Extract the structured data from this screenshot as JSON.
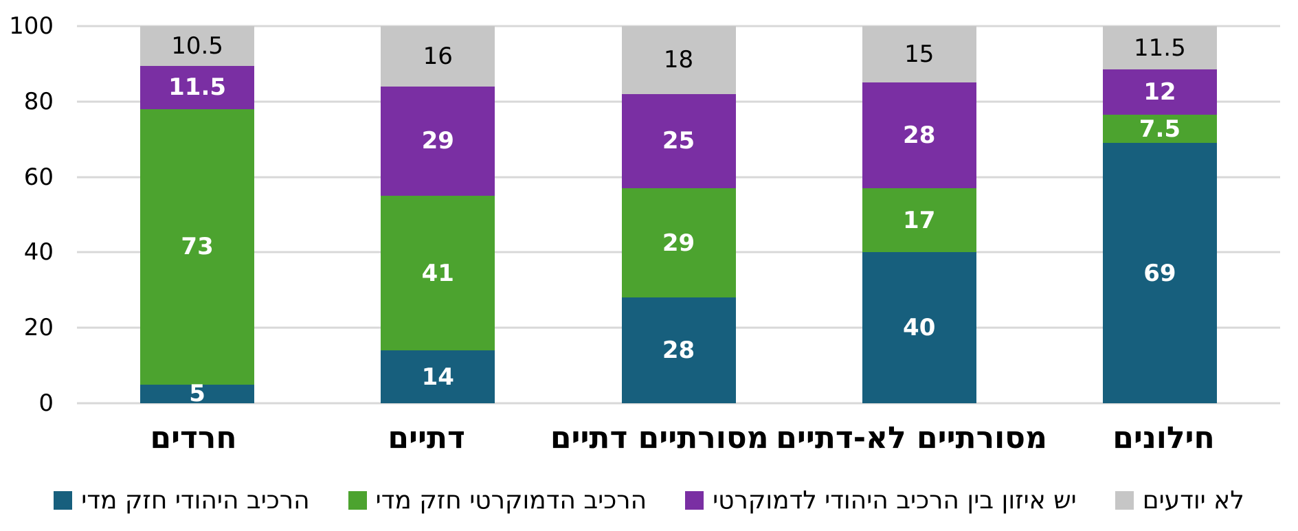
{
  "chart_data": {
    "type": "bar",
    "stacked": true,
    "title": "",
    "xlabel": "",
    "ylabel": "",
    "ylim": [
      0,
      100
    ],
    "yticks": [
      0,
      20,
      40,
      60,
      80,
      100
    ],
    "grid": "horizontal",
    "gridline_color": "#D8D8D8",
    "background": "#FFFFFF",
    "legend_position": "bottom",
    "categories": [
      "חרדים",
      "דתיים",
      "מסורתיים דתיים",
      "מסורתיים לא-דתיים",
      "חילונים"
    ],
    "series": [
      {
        "name": "הרכיב היהודי חזק מדי",
        "color": "#175F7D",
        "label_color": "#FFFFFF",
        "label_bold": true,
        "values": [
          5,
          14,
          28,
          40,
          69
        ]
      },
      {
        "name": "הרכיב הדמוקרטי חזק מדי",
        "color": "#4CA32F",
        "label_color": "#FFFFFF",
        "label_bold": true,
        "values": [
          73,
          41,
          29,
          17,
          7.5
        ]
      },
      {
        "name": "יש איזון בין הרכיב היהודי לדמוקרטי",
        "color": "#7A2FA3",
        "label_color": "#FFFFFF",
        "label_bold": true,
        "values": [
          11.5,
          29,
          25,
          28,
          12
        ]
      },
      {
        "name": "לא יודעים",
        "color": "#C6C6C6",
        "label_color": "#000000",
        "label_bold": false,
        "values": [
          10.5,
          16,
          18,
          15,
          11.5
        ]
      }
    ]
  }
}
